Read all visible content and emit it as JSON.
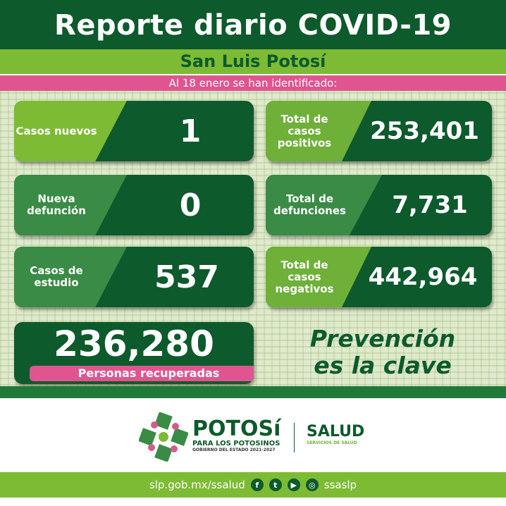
{
  "header": {
    "title": "Reporte diario COVID-19",
    "subtitle": "San Luis Potosí",
    "date_line": "Al 18 enero se han identificado:"
  },
  "cards": [
    {
      "label": "Casos nuevos",
      "value": "1",
      "color": "#7dbb35"
    },
    {
      "label": "Total de casos positivos",
      "value": "253,401",
      "color": "#6fb038"
    },
    {
      "label": "Nueva defunción",
      "value": "0",
      "color": "#3a8b45"
    },
    {
      "label": "Total de defunciones",
      "value": "7,731",
      "color": "#3a8b45"
    },
    {
      "label": "Casos de estudio",
      "value": "537",
      "color": "#3a8b45"
    },
    {
      "label": "Total de casos negativos",
      "value": "442,964",
      "color": "#6fb038"
    }
  ],
  "recovered": {
    "value": "236,280",
    "label": "Personas recuperadas"
  },
  "slogan": {
    "line1": "Prevención",
    "line2": "es la clave"
  },
  "logos": {
    "potosi": "POTOSí",
    "potosi_sub": "PARA LOS POTOSINOS",
    "potosi_gov": "GOBIERNO DEL ESTADO 2021-2027",
    "salud": "SALUD",
    "salud_sub": "SERVICIOS DE SALUD"
  },
  "footer": {
    "url": "slp.gob.mx/ssalud",
    "handle": "ssaslp",
    "icons": [
      "facebook-icon",
      "twitter-icon",
      "youtube-icon",
      "instagram-icon"
    ]
  },
  "colors": {
    "dark_green": "#0d5a2c",
    "light_green": "#7dbb35",
    "pink": "#e0558f"
  }
}
